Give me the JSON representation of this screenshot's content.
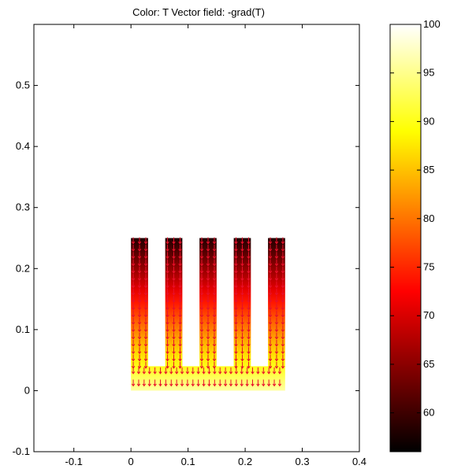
{
  "chart_data": [
    {
      "type": "heatmap",
      "title": "Color: T  Vector field: -grad(T)",
      "xlabel": "",
      "ylabel": "",
      "xlim": [
        -0.17,
        0.4
      ],
      "ylim": [
        -0.1,
        0.6
      ],
      "x_ticks": [
        -0.1,
        0,
        0.1,
        0.2,
        0.3,
        0.4
      ],
      "x_tick_labels": [
        "-0.1",
        "0",
        "0.1",
        "0.2",
        "0.3",
        "0.4"
      ],
      "y_ticks": [
        -0.1,
        0,
        0.1,
        0.2,
        0.3,
        0.4,
        0.5
      ],
      "y_tick_labels": [
        "-0.1",
        "0",
        "0.1",
        "0.2",
        "0.3",
        "0.4",
        "0.5"
      ],
      "grid": false,
      "colormap": "hot",
      "colorbar": {
        "min": 56,
        "max": 100,
        "ticks": [
          60,
          65,
          70,
          75,
          80,
          85,
          90,
          95,
          100
        ],
        "tick_labels": [
          "60",
          "65",
          "70",
          "75",
          "80",
          "85",
          "90",
          "95",
          "100"
        ]
      },
      "base": {
        "x": [
          0,
          0.27
        ],
        "y": [
          0,
          0.04
        ],
        "T_bottom": 96,
        "T_top": 90
      },
      "fins": [
        {
          "x": [
            0,
            0.03
          ],
          "y": [
            0.04,
            0.25
          ],
          "T_bottom": 90,
          "T_top": 58
        },
        {
          "x": [
            0.06,
            0.09
          ],
          "y": [
            0.04,
            0.25
          ],
          "T_bottom": 90,
          "T_top": 58
        },
        {
          "x": [
            0.12,
            0.15
          ],
          "y": [
            0.04,
            0.25
          ],
          "T_bottom": 90,
          "T_top": 58
        },
        {
          "x": [
            0.18,
            0.21
          ],
          "y": [
            0.04,
            0.25
          ],
          "T_bottom": 90,
          "T_top": 58
        },
        {
          "x": [
            0.24,
            0.27
          ],
          "y": [
            0.04,
            0.25
          ],
          "T_bottom": 90,
          "T_top": 58
        }
      ],
      "vector_field": {
        "name": "-grad(T)",
        "color": "#e8102a",
        "direction": "down"
      }
    }
  ]
}
